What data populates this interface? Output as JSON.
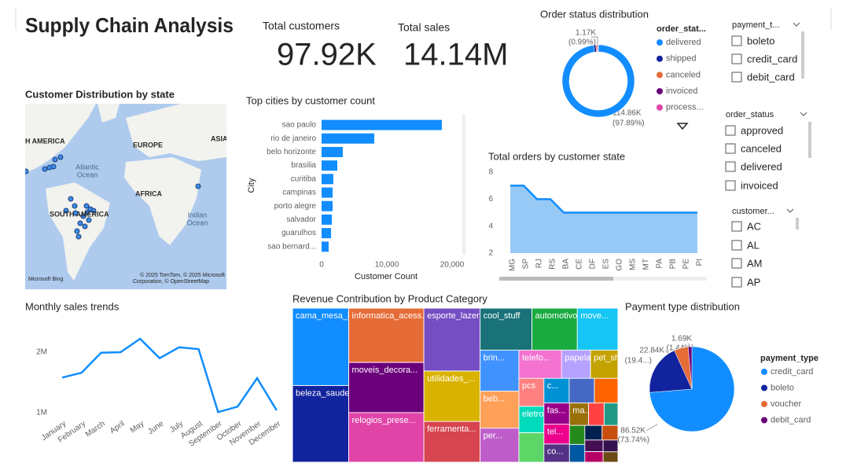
{
  "title": "Supply Chain Analysis",
  "kpis": [
    {
      "label": "Total customers",
      "value": "97.92K"
    },
    {
      "label": "Total sales",
      "value": "14.14M"
    }
  ],
  "map": {
    "title": "Customer Distribution by state",
    "labels": [
      "H AMERICA",
      "EUROPE",
      "ASIA",
      "Atlantic",
      "Ocean",
      "AFRICA",
      "SOUTH AMERICA",
      "Indian",
      "Ocean"
    ],
    "attribution": [
      "© 2025 TomTom, © 2025 Microsoft",
      "Corporation, © OpenStreetMap"
    ],
    "logo": "Microsoft Bing"
  },
  "slicers": [
    {
      "title": "payment_t...",
      "items": [
        "boleto",
        "credit_card",
        "debit_card"
      ]
    },
    {
      "title": "order_status",
      "items": [
        "approved",
        "canceled",
        "delivered",
        "invoiced"
      ]
    },
    {
      "title": "customer...",
      "items": [
        "AC",
        "AL",
        "AM",
        "AP"
      ]
    }
  ],
  "chart_data": [
    {
      "type": "donut",
      "title": "Order status distribution",
      "legend_title": "order_stat...",
      "categories": [
        "delivered",
        "shipped",
        "canceled",
        "invoiced",
        "process..."
      ],
      "values": [
        114860,
        1170,
        600,
        370,
        350
      ],
      "value_labels": [
        "114.86K",
        "1.17K",
        null,
        null,
        null
      ],
      "percent_labels": [
        "(97.89%)",
        "(0.99%)",
        null,
        null,
        null
      ],
      "colors": [
        "#118DFF",
        "#12239E",
        "#E66C37",
        "#6B007B",
        "#E044A7"
      ]
    },
    {
      "type": "bar",
      "orientation": "horizontal",
      "title": "Top cities by customer count",
      "x_label": "Customer Count",
      "y_label": "City",
      "categories": [
        "sao paulo",
        "rio de janeiro",
        "belo horizonte",
        "brasilia",
        "curitiba",
        "campinas",
        "porto alegre",
        "salvador",
        "guarulhos",
        "sao bernard..."
      ],
      "values": [
        18430,
        8070,
        3250,
        2410,
        1800,
        1690,
        1690,
        1570,
        1450,
        1080
      ],
      "color": "#118DFF",
      "xlim": [
        0,
        22000
      ],
      "xticks": [
        0,
        {
          "value": 10000,
          "label": "10,000"
        },
        {
          "value": 20000,
          "label": "20,000"
        }
      ]
    },
    {
      "type": "area",
      "title": "Total orders by customer state",
      "categories": [
        "MG",
        "SP",
        "RJ",
        "RS",
        "BA",
        "CE",
        "DF",
        "ES",
        "GO",
        "MS",
        "MT",
        "PA",
        "PB",
        "PE",
        "PI"
      ],
      "values": [
        7,
        7,
        6,
        6,
        5,
        5,
        5,
        5,
        5,
        5,
        5,
        5,
        5,
        5,
        5
      ],
      "color": "#118DFF",
      "fill": "#8CC3F5",
      "ylim": [
        2,
        8
      ],
      "yticks": [
        2,
        4,
        6,
        8
      ]
    },
    {
      "type": "line",
      "title": "Monthly sales trends",
      "categories": [
        "January",
        "February",
        "March",
        "April",
        "May",
        "June",
        "July",
        "August",
        "September",
        "October",
        "November",
        "December"
      ],
      "values": [
        1580000,
        1660000,
        1990000,
        2000000,
        2220000,
        1900000,
        2080000,
        2050000,
        1010000,
        1100000,
        1570000,
        1040000
      ],
      "color": "#118DFF",
      "ylim": [
        850000,
        2350000
      ],
      "yticks": [
        {
          "value": 1000000,
          "label": "1M"
        },
        {
          "value": 2000000,
          "label": "2M"
        }
      ]
    },
    {
      "type": "treemap",
      "title": "Revenue Contribution by Product Category",
      "categories": [
        "cama_mesa_banho",
        "beleza_saude",
        "informatica_acess...",
        "moveis_decora...",
        "relogios_prese...",
        "esporte_lazer",
        "utilidades_...",
        "ferramenta...",
        "cool_stuff",
        "automotivo",
        "move...",
        "brin...",
        "beb...",
        "per...",
        "telefo...",
        "papela...",
        "pet_sh...",
        "pcs",
        "eletro...",
        null,
        "c...",
        null,
        null,
        "fas...",
        "tel...",
        "co...",
        "ma...",
        null,
        null,
        null,
        null,
        null,
        null,
        null,
        null,
        null,
        null
      ],
      "values": [
        1120000,
        1110000,
        1050000,
        970000,
        960000,
        910000,
        730000,
        590000,
        560000,
        490000,
        440000,
        410000,
        370000,
        340000,
        310000,
        210000,
        200000,
        180000,
        170000,
        190000,
        160000,
        160000,
        150000,
        140000,
        130000,
        120000,
        110000,
        90000,
        80000,
        75000,
        70000,
        65000,
        60000,
        55000,
        50000,
        45000,
        40000
      ],
      "colors": [
        "#118DFF",
        "#12239E",
        "#E66C37",
        "#6B007B",
        "#E044A7",
        "#744EC2",
        "#D9B300",
        "#D64550",
        "#197278",
        "#1AAB40",
        "#15C6F4",
        "#4092FF",
        "#FFA058",
        "#BE5DC9",
        "#F472D0",
        "#B5A1FF",
        "#C4A200",
        "#FF8080",
        "#00DBBC",
        "#5BD667",
        "#0091D5",
        "#4668C5",
        "#FF6300",
        "#99008A",
        "#EC008C",
        "#533285",
        "#99700A",
        "#FF4141",
        "#1F9A85",
        "#25891C",
        "#0057A2",
        "#002050",
        "#C94F0F",
        "#450F54",
        "#B60064",
        "#34124F",
        "#6A4A12"
      ]
    },
    {
      "type": "pie",
      "title": "Payment type distribution",
      "legend_title": "payment_type",
      "categories": [
        "credit_card",
        "boleto",
        "voucher",
        "debit_card"
      ],
      "values": [
        86520,
        22840,
        6280,
        1690
      ],
      "value_labels": [
        "86.52K",
        "22.84K",
        null,
        "1.69K"
      ],
      "percent_labels": [
        "(73.74%)",
        "(19.4...)",
        null,
        "(1.44%)"
      ],
      "colors": [
        "#118DFF",
        "#12239E",
        "#E66C37",
        "#6B007B"
      ]
    }
  ]
}
